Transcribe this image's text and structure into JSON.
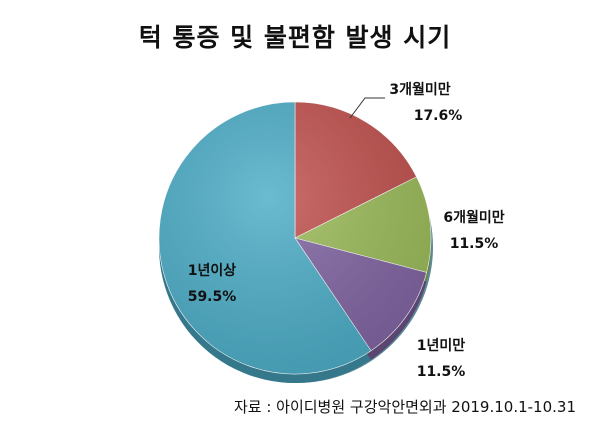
{
  "chart_data": {
    "type": "pie",
    "title": "턱 통증 및 불편함 발생 시기",
    "slices": [
      {
        "label": "3개월미만",
        "value": 17.6,
        "display": "17.6%",
        "color": "#c0504d"
      },
      {
        "label": "6개월미만",
        "value": 11.5,
        "display": "11.5%",
        "color": "#9bbb59"
      },
      {
        "label": "1년미만",
        "value": 11.5,
        "display": "11.5%",
        "color": "#8064a2"
      },
      {
        "label": "1년이상",
        "value": 59.5,
        "display": "59.5%",
        "color": "#4bacc6"
      }
    ]
  },
  "source": "자료 : 아이디병원 구강악안면외과  2019.10.1-10.31"
}
